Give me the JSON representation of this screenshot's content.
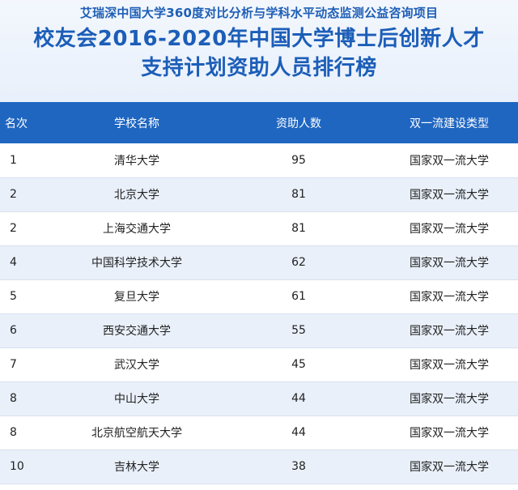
{
  "header": {
    "subtitle": "艾瑞深中国大学360度对比分析与学科水平动态监测公益咨询项目",
    "title_line1": "校友会2016-2020年中国大学博士后创新人才",
    "title_line2": "支持计划资助人员排行榜"
  },
  "table": {
    "columns": [
      "名次",
      "学校名称",
      "资助人数",
      "双一流建设类型"
    ],
    "rows": [
      {
        "rank": "1",
        "name": "清华大学",
        "count": "95",
        "type": "国家双一流大学"
      },
      {
        "rank": "2",
        "name": "北京大学",
        "count": "81",
        "type": "国家双一流大学"
      },
      {
        "rank": "2",
        "name": "上海交通大学",
        "count": "81",
        "type": "国家双一流大学"
      },
      {
        "rank": "4",
        "name": "中国科学技术大学",
        "count": "62",
        "type": "国家双一流大学"
      },
      {
        "rank": "5",
        "name": "复旦大学",
        "count": "61",
        "type": "国家双一流大学"
      },
      {
        "rank": "6",
        "name": "西安交通大学",
        "count": "55",
        "type": "国家双一流大学"
      },
      {
        "rank": "7",
        "name": "武汉大学",
        "count": "45",
        "type": "国家双一流大学"
      },
      {
        "rank": "8",
        "name": "中山大学",
        "count": "44",
        "type": "国家双一流大学"
      },
      {
        "rank": "8",
        "name": "北京航空航天大学",
        "count": "44",
        "type": "国家双一流大学"
      },
      {
        "rank": "10",
        "name": "吉林大学",
        "count": "38",
        "type": "国家双一流大学"
      }
    ]
  },
  "colors": {
    "header_bg": "#1f66c1",
    "title_text": "#1c5eb8",
    "stripe": "#e9f0fa"
  }
}
